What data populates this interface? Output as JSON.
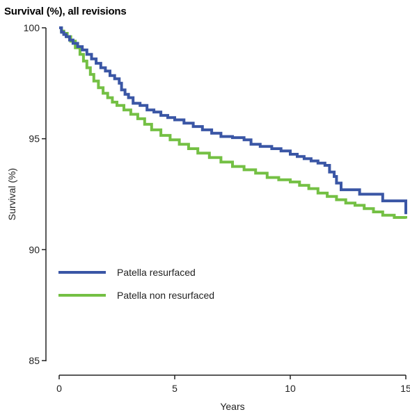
{
  "chart_data": {
    "type": "line",
    "title": "Survival (%), all revisions",
    "xlabel": "Years",
    "ylabel": "Survival (%)",
    "xlim": [
      0,
      15
    ],
    "ylim": [
      85,
      100
    ],
    "xticks": [
      0,
      5,
      10,
      15
    ],
    "yticks": [
      85,
      90,
      95,
      100
    ],
    "grid": false,
    "legend_position": "left-center",
    "series": [
      {
        "name": "Patella resurfaced",
        "color": "#3a56a5",
        "step": true,
        "x": [
          0,
          0.1,
          0.2,
          0.3,
          0.45,
          0.6,
          0.8,
          1.0,
          1.2,
          1.4,
          1.6,
          1.8,
          2.0,
          2.2,
          2.4,
          2.6,
          2.7,
          2.85,
          3.0,
          3.2,
          3.5,
          3.8,
          4.1,
          4.4,
          4.7,
          5.0,
          5.4,
          5.8,
          6.2,
          6.6,
          7.0,
          7.5,
          8.0,
          8.3,
          8.7,
          9.2,
          9.6,
          10.0,
          10.3,
          10.6,
          10.9,
          11.2,
          11.5,
          11.7,
          11.9,
          12.0,
          12.2,
          13.0,
          14.0,
          15.0
        ],
        "y": [
          100,
          99.8,
          99.7,
          99.6,
          99.45,
          99.3,
          99.15,
          99.0,
          98.8,
          98.6,
          98.4,
          98.2,
          98.05,
          97.85,
          97.7,
          97.5,
          97.2,
          97.0,
          96.85,
          96.6,
          96.5,
          96.3,
          96.2,
          96.05,
          95.95,
          95.85,
          95.7,
          95.55,
          95.4,
          95.25,
          95.1,
          95.05,
          94.95,
          94.75,
          94.65,
          94.55,
          94.45,
          94.3,
          94.2,
          94.1,
          94.0,
          93.9,
          93.8,
          93.5,
          93.3,
          93.0,
          92.7,
          92.5,
          92.2,
          91.6
        ]
      },
      {
        "name": "Patella non resurfaced",
        "color": "#74c044",
        "step": true,
        "x": [
          0,
          0.1,
          0.2,
          0.35,
          0.5,
          0.7,
          0.9,
          1.05,
          1.2,
          1.35,
          1.5,
          1.7,
          1.9,
          2.1,
          2.3,
          2.5,
          2.8,
          3.1,
          3.4,
          3.7,
          4.0,
          4.4,
          4.8,
          5.2,
          5.6,
          6.0,
          6.5,
          7.0,
          7.5,
          8.0,
          8.5,
          9.0,
          9.5,
          10.0,
          10.4,
          10.8,
          11.2,
          11.6,
          12.0,
          12.4,
          12.8,
          13.2,
          13.6,
          14.0,
          14.5,
          15.0
        ],
        "y": [
          100,
          99.85,
          99.75,
          99.6,
          99.4,
          99.1,
          98.8,
          98.5,
          98.2,
          97.9,
          97.6,
          97.3,
          97.05,
          96.85,
          96.65,
          96.5,
          96.3,
          96.1,
          95.9,
          95.65,
          95.4,
          95.15,
          94.95,
          94.75,
          94.55,
          94.35,
          94.15,
          93.95,
          93.75,
          93.6,
          93.45,
          93.25,
          93.15,
          93.05,
          92.9,
          92.75,
          92.55,
          92.4,
          92.25,
          92.1,
          92.0,
          91.85,
          91.7,
          91.55,
          91.45,
          91.4
        ]
      }
    ]
  }
}
